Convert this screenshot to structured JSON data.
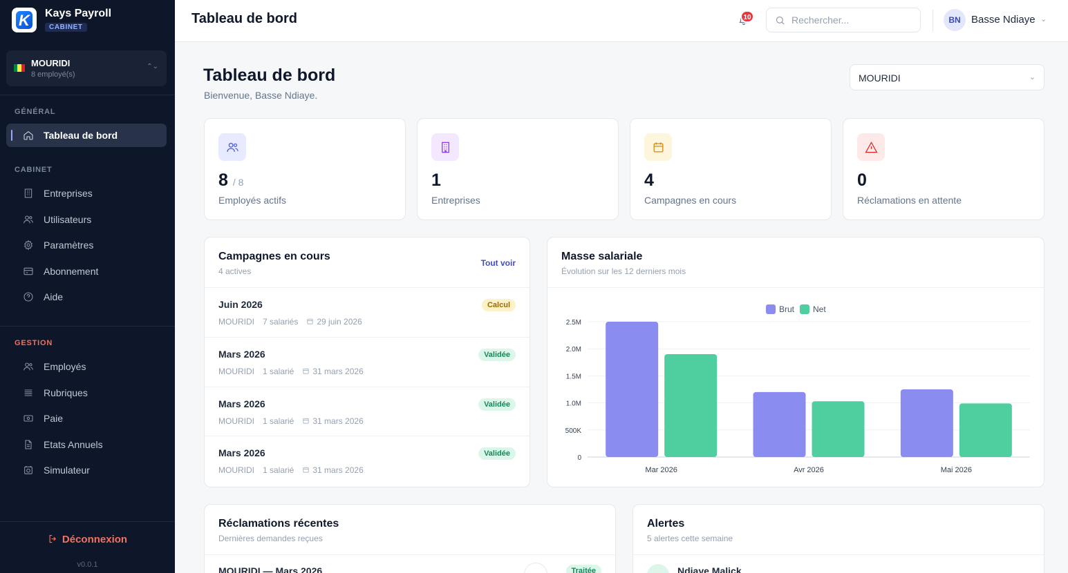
{
  "brand": {
    "name": "Kays Payroll",
    "badge": "CABINET"
  },
  "company_switcher": {
    "name": "MOURIDI",
    "employees": "8 employé(s)"
  },
  "sidebar": {
    "sections": {
      "general": "GÉNÉRAL",
      "cabinet": "CABINET",
      "gestion": "GESTION"
    },
    "general_items": [
      {
        "label": "Tableau de bord",
        "icon": "home-icon",
        "active": true
      }
    ],
    "cabinet_items": [
      {
        "label": "Entreprises",
        "icon": "building-icon"
      },
      {
        "label": "Utilisateurs",
        "icon": "users-icon"
      },
      {
        "label": "Paramètres",
        "icon": "gear-icon"
      },
      {
        "label": "Abonnement",
        "icon": "card-icon"
      },
      {
        "label": "Aide",
        "icon": "help-icon"
      }
    ],
    "gestion_items": [
      {
        "label": "Employés",
        "icon": "users-icon"
      },
      {
        "label": "Rubriques",
        "icon": "list-icon"
      },
      {
        "label": "Paie",
        "icon": "money-icon"
      },
      {
        "label": "Etats Annuels",
        "icon": "document-icon"
      },
      {
        "label": "Simulateur",
        "icon": "calculator-icon"
      }
    ],
    "logout": "Déconnexion",
    "version": "v0.0.1"
  },
  "topbar": {
    "title": "Tableau de bord",
    "notifications": "10",
    "search_placeholder": "Rechercher...",
    "avatar_initials": "BN",
    "user_name": "Basse Ndiaye"
  },
  "page": {
    "title": "Tableau de bord",
    "subtitle": "Bienvenue, Basse Ndiaye.",
    "company_select": "MOURIDI"
  },
  "stats": [
    {
      "value": "8",
      "total": "/ 8",
      "label": "Employés actifs",
      "icon": "users-icon",
      "color": "#4f5bd5",
      "bg": "#e8eaff"
    },
    {
      "value": "1",
      "total": "",
      "label": "Entreprises",
      "icon": "building-icon",
      "color": "#9333ea",
      "bg": "#f3e8ff"
    },
    {
      "value": "4",
      "total": "",
      "label": "Campagnes en cours",
      "icon": "calendar-icon",
      "color": "#d48806",
      "bg": "#fef6dc"
    },
    {
      "value": "0",
      "total": "",
      "label": "Réclamations en attente",
      "icon": "alert-icon",
      "color": "#dc2626",
      "bg": "#fee9e9"
    }
  ],
  "campaigns": {
    "title": "Campagnes en cours",
    "subtitle": "4 actives",
    "link": "Tout voir",
    "rows": [
      {
        "title": "Juin 2026",
        "company": "MOURIDI",
        "count": "7 salariés",
        "date": "29 juin 2026",
        "status": "Calcul",
        "tone": "warn"
      },
      {
        "title": "Mars 2026",
        "company": "MOURIDI",
        "count": "1 salarié",
        "date": "31 mars 2026",
        "status": "Validée",
        "tone": "ok"
      },
      {
        "title": "Mars 2026",
        "company": "MOURIDI",
        "count": "1 salarié",
        "date": "31 mars 2026",
        "status": "Validée",
        "tone": "ok"
      },
      {
        "title": "Mars 2026",
        "company": "MOURIDI",
        "count": "1 salarié",
        "date": "31 mars 2026",
        "status": "Validée",
        "tone": "ok"
      }
    ]
  },
  "payroll": {
    "title": "Masse salariale",
    "subtitle": "Évolution sur les 12 derniers mois"
  },
  "chart_data": {
    "type": "bar",
    "title": "Masse salariale",
    "categories": [
      "Mar 2026",
      "Avr 2026",
      "Mai 2026"
    ],
    "series": [
      {
        "name": "Brut",
        "values": [
          2500000,
          1200000,
          1250000
        ],
        "color": "#8b8cf0"
      },
      {
        "name": "Net",
        "values": [
          1900000,
          1030000,
          990000
        ],
        "color": "#4fcf9f"
      }
    ],
    "yticks": [
      0,
      500000,
      1000000,
      1500000,
      2000000,
      2500000
    ],
    "ytick_labels": [
      "0",
      "500K",
      "1.0M",
      "1.5M",
      "2.0M",
      "2.5M"
    ],
    "ylim": [
      0,
      2500000
    ],
    "grid": true,
    "legend": "top-center"
  },
  "claims": {
    "title": "Réclamations récentes",
    "subtitle": "Dernières demandes reçues",
    "first_row": "MOURIDI — Mars 2026",
    "first_status": "Traitée"
  },
  "alerts": {
    "title": "Alertes",
    "subtitle": "5 alertes cette semaine",
    "first_name": "Ndiaye Malick"
  }
}
